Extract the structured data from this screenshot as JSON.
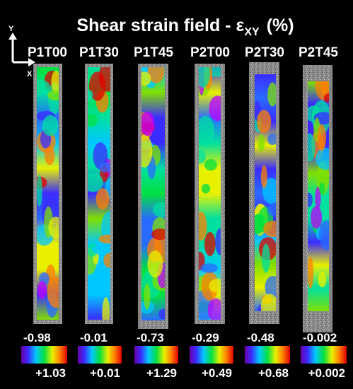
{
  "title": {
    "text": "Shear strain field - ε",
    "subscript": "XY",
    "unit": "(%)"
  },
  "axes": {
    "y": "Y",
    "x": "X"
  },
  "specimens": [
    {
      "label": "P1T00",
      "min": "-0.98",
      "max": "+1.03"
    },
    {
      "label": "P1T30",
      "min": "-0.01",
      "max": "+0.01"
    },
    {
      "label": "P1T45",
      "min": "-0.73",
      "max": "+1.29"
    },
    {
      "label": "P2T00",
      "min": "-0.29",
      "max": "+0.49"
    },
    {
      "label": "P2T30",
      "min": "-0.48",
      "max": "+0.68"
    },
    {
      "label": "P2T45",
      "min": "-0.002",
      "max": "+0.002"
    }
  ]
}
